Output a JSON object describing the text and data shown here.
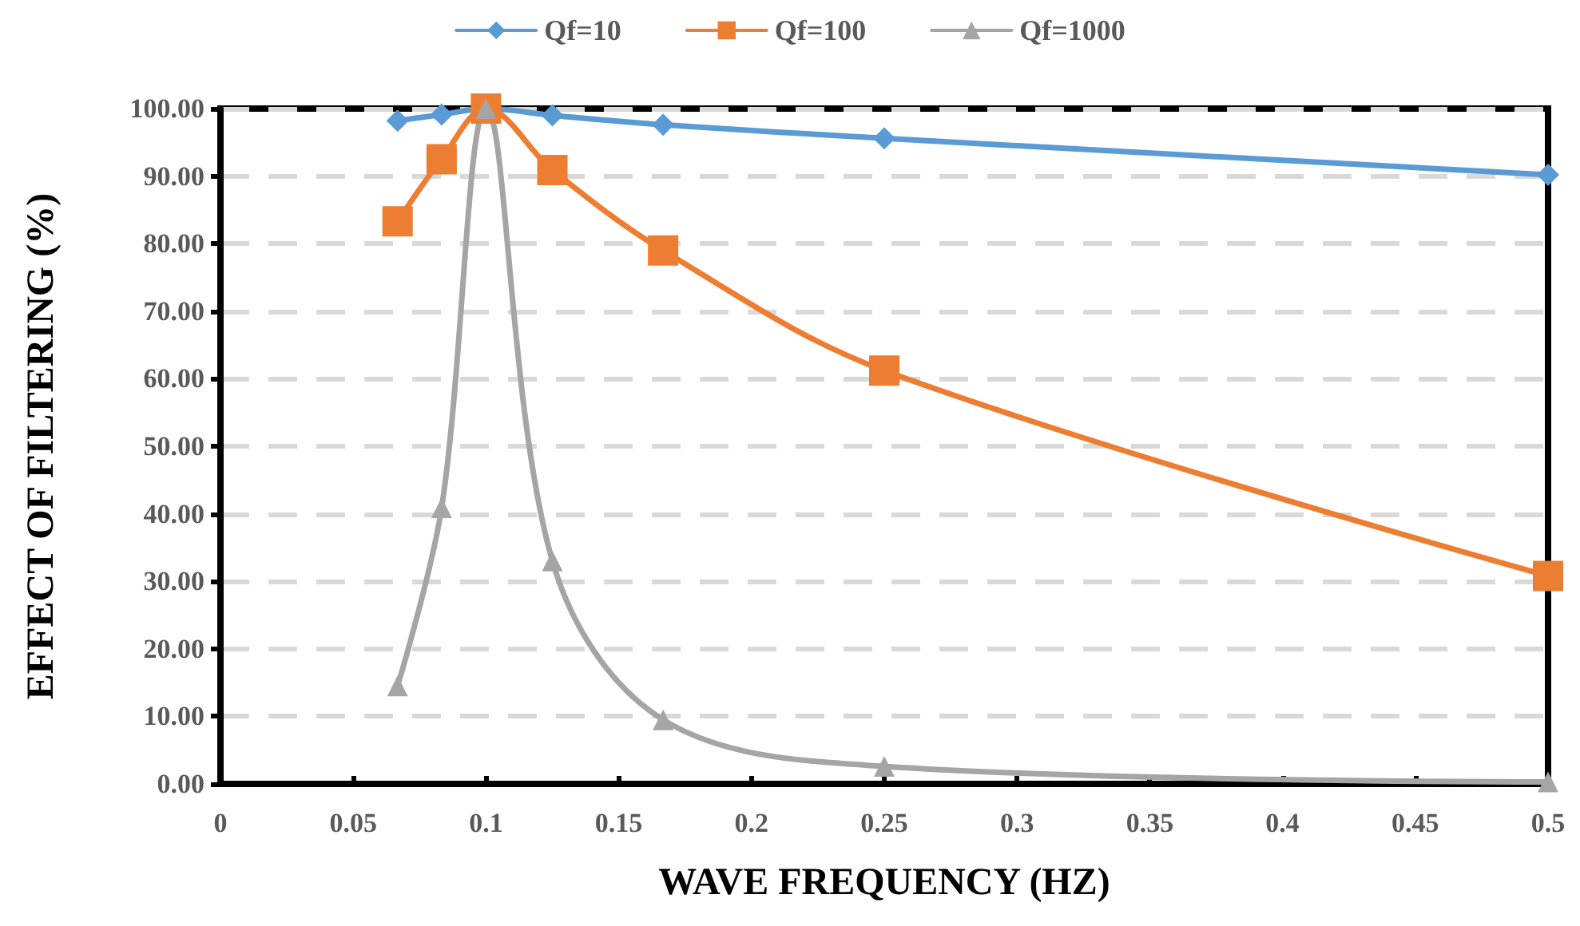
{
  "chart_data": {
    "type": "line",
    "xlabel": "WAVE FREQUENCY (HZ)",
    "ylabel": "EFFECT OF FILTERING (%)",
    "x": [
      0.0667,
      0.0833,
      0.1,
      0.125,
      0.1667,
      0.25,
      0.5
    ],
    "series": [
      {
        "name": "Qf=10",
        "color": "#5b9bd5",
        "marker": "diamond",
        "values": [
          98.2,
          99.1,
          100,
          99.0,
          97.6,
          95.6,
          90.2
        ]
      },
      {
        "name": "Qf=100",
        "color": "#ed7d31",
        "marker": "square",
        "values": [
          83.3,
          92.5,
          100,
          90.9,
          79.0,
          61.2,
          30.8
        ]
      },
      {
        "name": "Qf=1000",
        "color": "#a5a5a5",
        "marker": "triangle",
        "values": [
          14.5,
          40.9,
          100,
          33.0,
          9.5,
          2.6,
          0.3
        ]
      }
    ],
    "xlim": [
      0,
      0.5
    ],
    "xticks": [
      0,
      0.05,
      0.1,
      0.15,
      0.2,
      0.25,
      0.3,
      0.35,
      0.4,
      0.45,
      0.5
    ],
    "ylim": [
      0,
      100
    ],
    "yticks": [
      {
        "value": 0,
        "label": "0.00"
      },
      {
        "value": 10,
        "label": "10.00"
      },
      {
        "value": 20,
        "label": "20.00"
      },
      {
        "value": 30,
        "label": "30.00"
      },
      {
        "value": 40,
        "label": "40.00"
      },
      {
        "value": 50,
        "label": "50.00"
      },
      {
        "value": 60,
        "label": "60.00"
      },
      {
        "value": 70,
        "label": "70.00"
      },
      {
        "value": 80,
        "label": "80.00"
      },
      {
        "value": 90,
        "label": "90.00"
      },
      {
        "value": 100,
        "label": "100.00"
      }
    ],
    "grid": "y",
    "legend": "top",
    "line_style": "solid"
  }
}
